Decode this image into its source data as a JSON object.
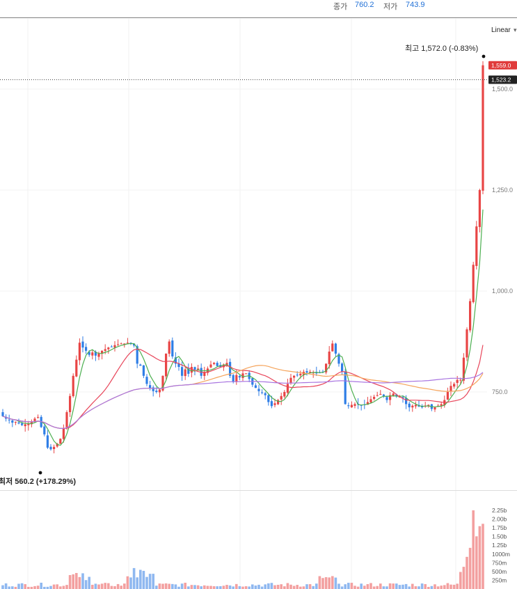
{
  "header": {
    "close_label": "종가",
    "close_value": "760.2",
    "low_label": "저가",
    "low_value": "743.9"
  },
  "scale_mode": "Linear",
  "colors": {
    "up": "#e84545",
    "down": "#2f7ee6",
    "ma5": "#4caf50",
    "ma20": "#e8455a",
    "ma60": "#f5a35a",
    "ma120": "#a874e0",
    "vol_up": "#f3a0a0",
    "vol_down": "#8fb8f0"
  },
  "chart_data": {
    "type": "candlestick",
    "price_axis": {
      "ticks": [
        1500.0,
        1250.0,
        1000.0,
        750.0
      ],
      "tick_labels": [
        "1,500.0",
        "1,250.0",
        "1,000.0",
        "750.0"
      ]
    },
    "last_price_label": "1,559.0",
    "crosshair_label": "1,523.2",
    "high_annotation": "최고 1,572.0 (-0.83%)",
    "low_annotation": "최저 560.2 (+178.29%)",
    "volume_axis": {
      "tick_labels": [
        "2.25b",
        "2.00b",
        "1.75b",
        "1.50b",
        "1.25b",
        "1000m",
        "750m",
        "500m",
        "250m"
      ],
      "ticks": [
        2250,
        2000,
        1750,
        1500,
        1250,
        1000,
        750,
        500,
        250
      ],
      "unit": "million"
    },
    "closes": [
      690,
      684,
      680,
      674,
      676,
      672,
      668,
      670,
      672,
      676,
      684,
      688,
      663,
      645,
      612,
      608,
      614,
      622,
      634,
      660,
      700,
      740,
      790,
      830,
      872,
      860,
      852,
      842,
      848,
      840,
      845,
      852,
      856,
      860,
      862,
      866,
      868,
      870,
      870,
      872,
      870,
      865,
      820,
      815,
      790,
      770,
      760,
      752,
      750,
      756,
      790,
      845,
      875,
      838,
      820,
      812,
      790,
      806,
      795,
      812,
      805,
      808,
      790,
      800,
      808,
      818,
      822,
      814,
      812,
      818,
      822,
      790,
      776,
      792,
      786,
      796,
      796,
      782,
      768,
      760,
      752,
      748,
      742,
      725,
      715,
      722,
      730,
      740,
      750,
      770,
      785,
      790,
      792,
      795,
      800,
      798,
      800,
      798,
      796,
      798,
      800,
      820,
      850,
      870,
      845,
      820,
      800,
      720,
      715,
      718,
      720,
      720,
      716,
      718,
      725,
      732,
      738,
      742,
      745,
      740,
      730,
      742,
      746,
      740,
      738,
      735,
      720,
      712,
      716,
      718,
      714,
      712,
      716,
      718,
      708,
      712,
      716,
      720,
      730,
      750,
      765,
      770,
      780,
      780,
      835,
      905,
      975,
      1065,
      1160,
      1250,
      1559
    ]
  }
}
